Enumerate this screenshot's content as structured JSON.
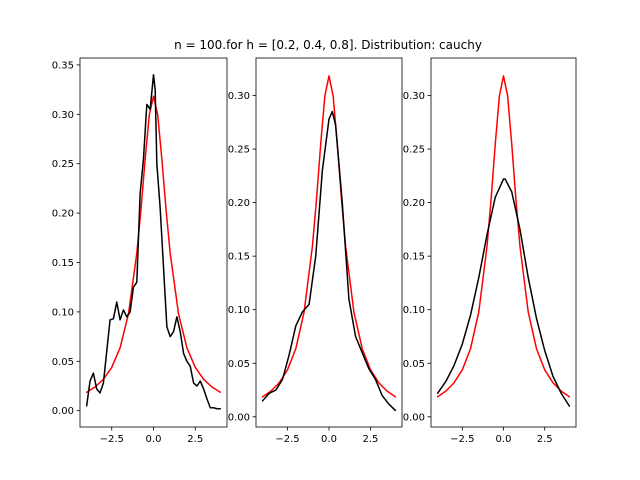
{
  "title": "n = 100.for h = [0.2, 0.4, 0.8]. Distribution: cauchy",
  "colors": {
    "true_density": "#ff0000",
    "kde": "#000000"
  },
  "chart_data": [
    {
      "type": "line",
      "xlim": [
        -4.4,
        4.4
      ],
      "ylim": [
        -0.0165,
        0.357
      ],
      "xticks": [
        -2.5,
        0.0,
        2.5
      ],
      "xtick_labels": [
        "−2.5",
        "0.0",
        "2.5"
      ],
      "yticks": [
        0.0,
        0.05,
        0.1,
        0.15,
        0.2,
        0.25,
        0.3,
        0.35
      ],
      "ytick_labels": [
        "0.00",
        "0.05",
        "0.10",
        "0.15",
        "0.20",
        "0.25",
        "0.30",
        "0.35"
      ],
      "grid": false,
      "series": [
        {
          "color": "#ff0000",
          "x": [
            -4.0,
            -3.5,
            -3.0,
            -2.5,
            -2.0,
            -1.5,
            -1.0,
            -0.75,
            -0.5,
            -0.25,
            0.0,
            0.25,
            0.5,
            0.75,
            1.0,
            1.5,
            2.0,
            2.5,
            3.0,
            3.5,
            4.0
          ],
          "y": [
            0.0187,
            0.024,
            0.0318,
            0.0439,
            0.0637,
            0.0979,
            0.1592,
            0.2037,
            0.2546,
            0.2996,
            0.3183,
            0.2996,
            0.2546,
            0.2037,
            0.1592,
            0.0979,
            0.0637,
            0.0439,
            0.0318,
            0.024,
            0.0187
          ]
        },
        {
          "color": "#000000",
          "x": [
            -4.0,
            -3.8,
            -3.6,
            -3.4,
            -3.2,
            -3.0,
            -2.8,
            -2.6,
            -2.4,
            -2.2,
            -2.0,
            -1.8,
            -1.6,
            -1.4,
            -1.2,
            -1.0,
            -0.8,
            -0.6,
            -0.4,
            -0.2,
            0.0,
            0.1,
            0.2,
            0.4,
            0.6,
            0.8,
            1.0,
            1.2,
            1.4,
            1.6,
            1.8,
            2.0,
            2.2,
            2.4,
            2.6,
            2.8,
            3.0,
            3.2,
            3.4,
            3.6,
            3.8,
            4.0
          ],
          "y": [
            0.005,
            0.03,
            0.038,
            0.022,
            0.018,
            0.028,
            0.06,
            0.092,
            0.093,
            0.11,
            0.092,
            0.102,
            0.095,
            0.1,
            0.125,
            0.13,
            0.22,
            0.255,
            0.31,
            0.305,
            0.34,
            0.325,
            0.25,
            0.205,
            0.145,
            0.085,
            0.075,
            0.08,
            0.095,
            0.08,
            0.058,
            0.05,
            0.045,
            0.028,
            0.025,
            0.03,
            0.022,
            0.012,
            0.003,
            0.003,
            0.002,
            0.002
          ]
        }
      ]
    },
    {
      "type": "line",
      "xlim": [
        -4.4,
        4.4
      ],
      "ylim": [
        -0.0095,
        0.335
      ],
      "xticks": [
        -2.5,
        0.0,
        2.5
      ],
      "xtick_labels": [
        "−2.5",
        "0.0",
        "2.5"
      ],
      "yticks": [
        0.0,
        0.05,
        0.1,
        0.15,
        0.2,
        0.25,
        0.3
      ],
      "ytick_labels": [
        "0.00",
        "0.05",
        "0.10",
        "0.15",
        "0.20",
        "0.25",
        "0.30"
      ],
      "grid": false,
      "series": [
        {
          "color": "#ff0000",
          "x": [
            -4.0,
            -3.5,
            -3.0,
            -2.5,
            -2.0,
            -1.5,
            -1.0,
            -0.75,
            -0.5,
            -0.25,
            0.0,
            0.25,
            0.5,
            0.75,
            1.0,
            1.5,
            2.0,
            2.5,
            3.0,
            3.5,
            4.0
          ],
          "y": [
            0.0187,
            0.024,
            0.0318,
            0.0439,
            0.0637,
            0.0979,
            0.1592,
            0.2037,
            0.2546,
            0.2996,
            0.3183,
            0.2996,
            0.2546,
            0.2037,
            0.1592,
            0.0979,
            0.0637,
            0.0439,
            0.0318,
            0.024,
            0.0187
          ]
        },
        {
          "color": "#000000",
          "x": [
            -4.0,
            -3.6,
            -3.2,
            -2.8,
            -2.4,
            -2.0,
            -1.6,
            -1.2,
            -0.8,
            -0.4,
            0.0,
            0.2,
            0.4,
            0.8,
            1.2,
            1.6,
            2.0,
            2.4,
            2.8,
            3.2,
            3.6,
            4.0
          ],
          "y": [
            0.015,
            0.022,
            0.025,
            0.035,
            0.058,
            0.085,
            0.098,
            0.105,
            0.15,
            0.23,
            0.278,
            0.285,
            0.272,
            0.2,
            0.11,
            0.075,
            0.06,
            0.045,
            0.035,
            0.02,
            0.012,
            0.006
          ]
        }
      ]
    },
    {
      "type": "line",
      "xlim": [
        -4.4,
        4.4
      ],
      "ylim": [
        -0.0095,
        0.335
      ],
      "xticks": [
        -2.5,
        0.0,
        2.5
      ],
      "xtick_labels": [
        "−2.5",
        "0.0",
        "2.5"
      ],
      "yticks": [
        0.0,
        0.05,
        0.1,
        0.15,
        0.2,
        0.25,
        0.3
      ],
      "ytick_labels": [
        "0.00",
        "0.05",
        "0.10",
        "0.15",
        "0.20",
        "0.25",
        "0.30"
      ],
      "grid": false,
      "series": [
        {
          "color": "#ff0000",
          "x": [
            -4.0,
            -3.5,
            -3.0,
            -2.5,
            -2.0,
            -1.5,
            -1.0,
            -0.75,
            -0.5,
            -0.25,
            0.0,
            0.25,
            0.5,
            0.75,
            1.0,
            1.5,
            2.0,
            2.5,
            3.0,
            3.5,
            4.0
          ],
          "y": [
            0.0187,
            0.024,
            0.0318,
            0.0439,
            0.0637,
            0.0979,
            0.1592,
            0.2037,
            0.2546,
            0.2996,
            0.3183,
            0.2996,
            0.2546,
            0.2037,
            0.1592,
            0.0979,
            0.0637,
            0.0439,
            0.0318,
            0.024,
            0.0187
          ]
        },
        {
          "color": "#000000",
          "x": [
            -4.0,
            -3.5,
            -3.0,
            -2.5,
            -2.0,
            -1.5,
            -1.0,
            -0.5,
            0.0,
            0.1,
            0.5,
            1.0,
            1.5,
            2.0,
            2.5,
            3.0,
            3.5,
            4.0
          ],
          "y": [
            0.022,
            0.033,
            0.048,
            0.068,
            0.095,
            0.13,
            0.17,
            0.205,
            0.222,
            0.222,
            0.21,
            0.175,
            0.13,
            0.092,
            0.062,
            0.038,
            0.022,
            0.01
          ]
        }
      ]
    }
  ]
}
